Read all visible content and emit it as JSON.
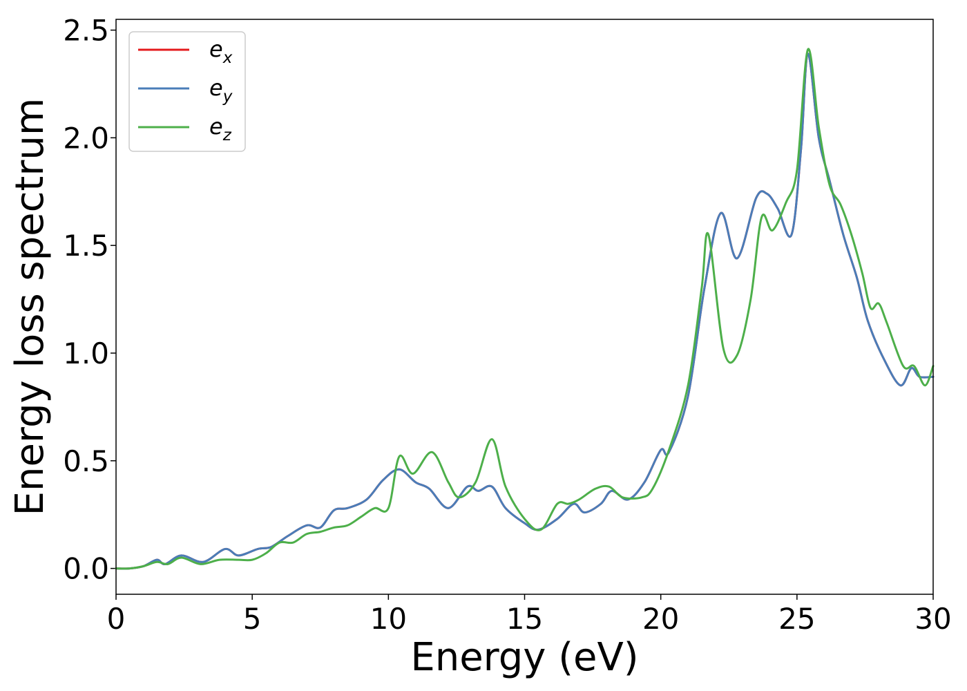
{
  "chart_data": {
    "type": "line",
    "title": "",
    "xlabel": "Energy (eV)",
    "ylabel": "Energy loss spectrum",
    "xlim": [
      0,
      30
    ],
    "ylim": [
      -0.12,
      2.55
    ],
    "xticks": [
      0,
      5,
      10,
      15,
      20,
      25,
      30
    ],
    "yticks": [
      0.0,
      0.5,
      1.0,
      1.5,
      2.0,
      2.5
    ],
    "xtick_labels": [
      "0",
      "5",
      "10",
      "15",
      "20",
      "25",
      "30"
    ],
    "ytick_labels": [
      "0.0",
      "0.5",
      "1.0",
      "1.5",
      "2.0",
      "2.5"
    ],
    "grid": false,
    "legend_position": "top-left",
    "series": [
      {
        "name": "e_x",
        "label_base": "e",
        "label_sub": "x",
        "color": "#e41a1c",
        "x": [
          0,
          0.5,
          1.0,
          1.5,
          1.8,
          2.4,
          3.2,
          4.0,
          4.5,
          5.2,
          5.7,
          6.3,
          7.0,
          7.5,
          8.0,
          8.5,
          9.2,
          9.8,
          10.4,
          11.0,
          11.5,
          12.2,
          12.9,
          13.3,
          13.8,
          14.3,
          15.0,
          15.5,
          16.2,
          16.8,
          17.2,
          17.8,
          18.2,
          18.8,
          19.4,
          20.0,
          20.3,
          21.0,
          21.6,
          22.2,
          22.8,
          23.5,
          23.9,
          24.3,
          24.8,
          25.15,
          25.4,
          25.8,
          26.2,
          26.7,
          27.2,
          27.6,
          28.2,
          28.8,
          29.2,
          29.5,
          30.0
        ],
        "y": [
          0.0,
          0.0,
          0.01,
          0.04,
          0.02,
          0.06,
          0.03,
          0.09,
          0.06,
          0.09,
          0.1,
          0.15,
          0.2,
          0.19,
          0.27,
          0.28,
          0.32,
          0.41,
          0.46,
          0.4,
          0.37,
          0.28,
          0.38,
          0.36,
          0.38,
          0.28,
          0.21,
          0.18,
          0.23,
          0.3,
          0.26,
          0.3,
          0.36,
          0.32,
          0.4,
          0.55,
          0.54,
          0.8,
          1.3,
          1.65,
          1.44,
          1.72,
          1.74,
          1.67,
          1.55,
          1.95,
          2.39,
          2.0,
          1.8,
          1.55,
          1.35,
          1.15,
          0.97,
          0.85,
          0.93,
          0.89,
          0.89
        ]
      },
      {
        "name": "e_y",
        "label_base": "e",
        "label_sub": "y",
        "color": "#4a7db8",
        "x": [
          0,
          0.5,
          1.0,
          1.5,
          1.8,
          2.4,
          3.2,
          4.0,
          4.5,
          5.2,
          5.7,
          6.3,
          7.0,
          7.5,
          8.0,
          8.5,
          9.2,
          9.8,
          10.4,
          11.0,
          11.5,
          12.2,
          12.9,
          13.3,
          13.8,
          14.3,
          15.0,
          15.5,
          16.2,
          16.8,
          17.2,
          17.8,
          18.2,
          18.8,
          19.4,
          20.0,
          20.3,
          21.0,
          21.6,
          22.2,
          22.8,
          23.5,
          23.9,
          24.3,
          24.8,
          25.15,
          25.4,
          25.8,
          26.2,
          26.7,
          27.2,
          27.6,
          28.2,
          28.8,
          29.2,
          29.5,
          30.0
        ],
        "y": [
          0.0,
          0.0,
          0.01,
          0.04,
          0.02,
          0.06,
          0.03,
          0.09,
          0.06,
          0.09,
          0.1,
          0.15,
          0.2,
          0.19,
          0.27,
          0.28,
          0.32,
          0.41,
          0.46,
          0.4,
          0.37,
          0.28,
          0.38,
          0.36,
          0.38,
          0.28,
          0.21,
          0.18,
          0.23,
          0.3,
          0.26,
          0.3,
          0.36,
          0.32,
          0.4,
          0.55,
          0.54,
          0.8,
          1.3,
          1.65,
          1.44,
          1.72,
          1.74,
          1.67,
          1.55,
          1.95,
          2.39,
          2.0,
          1.8,
          1.55,
          1.35,
          1.15,
          0.97,
          0.85,
          0.93,
          0.89,
          0.89
        ]
      },
      {
        "name": "e_z",
        "label_base": "e",
        "label_sub": "z",
        "color": "#4daf4a",
        "x": [
          0,
          0.5,
          1.0,
          1.5,
          1.9,
          2.4,
          3.1,
          3.8,
          4.5,
          5.0,
          5.5,
          6.0,
          6.5,
          7.0,
          7.5,
          8.0,
          8.5,
          9.0,
          9.5,
          10.0,
          10.4,
          10.9,
          11.6,
          12.2,
          12.6,
          13.2,
          13.8,
          14.3,
          15.0,
          15.6,
          16.2,
          16.6,
          17.0,
          17.6,
          18.1,
          18.6,
          19.3,
          19.7,
          20.3,
          21.0,
          21.5,
          21.75,
          22.3,
          22.8,
          23.3,
          23.7,
          24.1,
          24.6,
          25.0,
          25.4,
          25.8,
          26.2,
          26.6,
          27.0,
          27.4,
          27.7,
          28.0,
          28.3,
          28.9,
          29.3,
          29.7,
          30.0
        ],
        "y": [
          0.0,
          0.0,
          0.01,
          0.03,
          0.02,
          0.05,
          0.02,
          0.04,
          0.04,
          0.04,
          0.07,
          0.12,
          0.12,
          0.16,
          0.17,
          0.19,
          0.2,
          0.24,
          0.28,
          0.28,
          0.52,
          0.44,
          0.54,
          0.4,
          0.33,
          0.4,
          0.6,
          0.38,
          0.23,
          0.18,
          0.3,
          0.3,
          0.32,
          0.37,
          0.38,
          0.33,
          0.33,
          0.37,
          0.55,
          0.85,
          1.3,
          1.55,
          1.02,
          0.99,
          1.25,
          1.63,
          1.57,
          1.7,
          1.85,
          2.41,
          2.05,
          1.78,
          1.69,
          1.55,
          1.37,
          1.21,
          1.23,
          1.14,
          0.94,
          0.94,
          0.85,
          0.94
        ]
      }
    ]
  }
}
